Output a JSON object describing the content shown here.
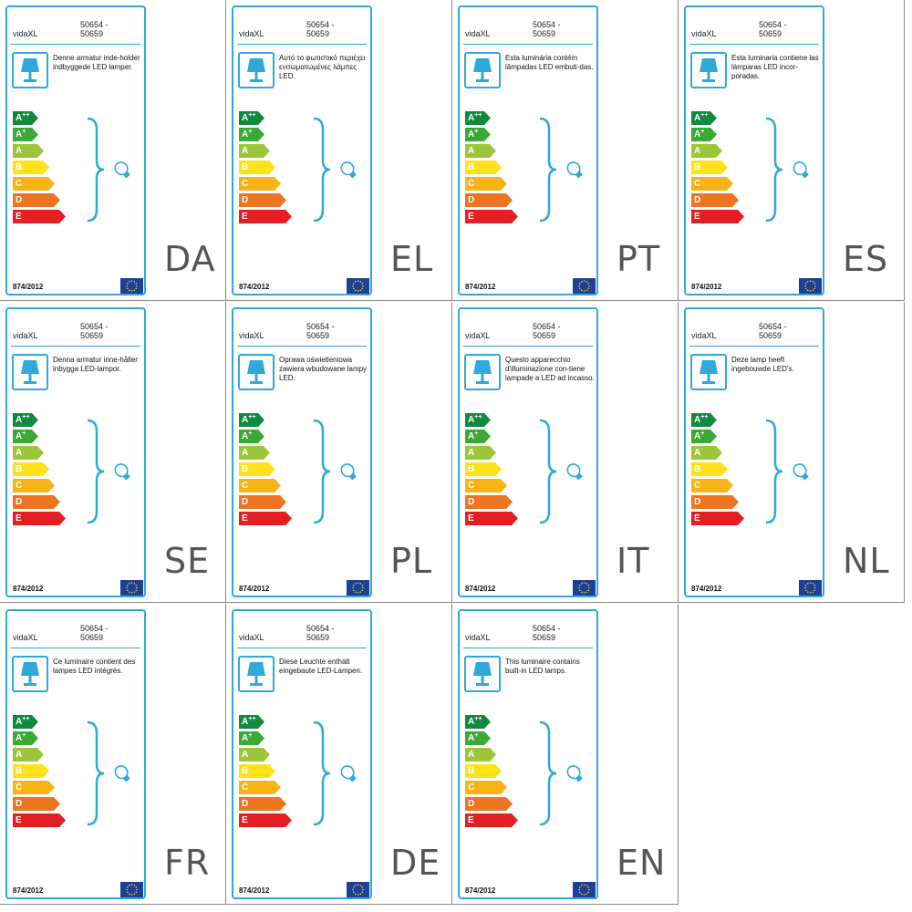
{
  "brand": "vidaXL",
  "model": "50654 -\n50659",
  "regulation": "874/2012",
  "colors": {
    "frame": "#2fa8dc",
    "app": "#108a3e",
    "ap": "#3aa935",
    "a": "#9dc53a",
    "b": "#ffe21b",
    "c": "#f8b415",
    "d": "#ed7423",
    "e": "#e31e24",
    "eu_flag": "#1d3f97",
    "eu_stars": "#ffdd00"
  },
  "ratings": [
    {
      "letter": "A",
      "sup": "++",
      "color": "#108a3e"
    },
    {
      "letter": "A",
      "sup": "+",
      "color": "#3aa935"
    },
    {
      "letter": "A",
      "sup": "",
      "color": "#9dc53a"
    },
    {
      "letter": "B",
      "sup": "",
      "color": "#ffe21b"
    },
    {
      "letter": "C",
      "sup": "",
      "color": "#f8b415"
    },
    {
      "letter": "D",
      "sup": "",
      "color": "#ed7423"
    },
    {
      "letter": "E",
      "sup": "",
      "color": "#e31e24"
    }
  ],
  "labels": [
    {
      "lang": "DA",
      "text": "Denne armatur inde-holder indbyggede LED lamper."
    },
    {
      "lang": "EL",
      "text": "Αυτό το φωτιστικό περιέχει ενσωματωμένες λάμπες LED."
    },
    {
      "lang": "PT",
      "text": "Esta luminária contém lâmpadas LED embuti-das."
    },
    {
      "lang": "ES",
      "text": "Esta luminaria contiene las lámparas LED incor-poradas."
    },
    {
      "lang": "SE",
      "text": "Denna armatur inne-håller inbygga LED-lampor."
    },
    {
      "lang": "PL",
      "text": "Oprawa oświetleniowa zawiera wbudowane lampy LED."
    },
    {
      "lang": "IT",
      "text": "Questo apparecchio d'illuminazione con-tiene lampade a LED ad incasso."
    },
    {
      "lang": "NL",
      "text": "Deze lamp heeft ingebouwde LED’s."
    },
    {
      "lang": "FR",
      "text": "Ce luminaire contient des lampes LED intégrés."
    },
    {
      "lang": "DE",
      "text": "Diese Leuchte enthält eingebaute LED-Lampen."
    },
    {
      "lang": "EN",
      "text": "This luminaire contains built-in LED lamps."
    }
  ]
}
